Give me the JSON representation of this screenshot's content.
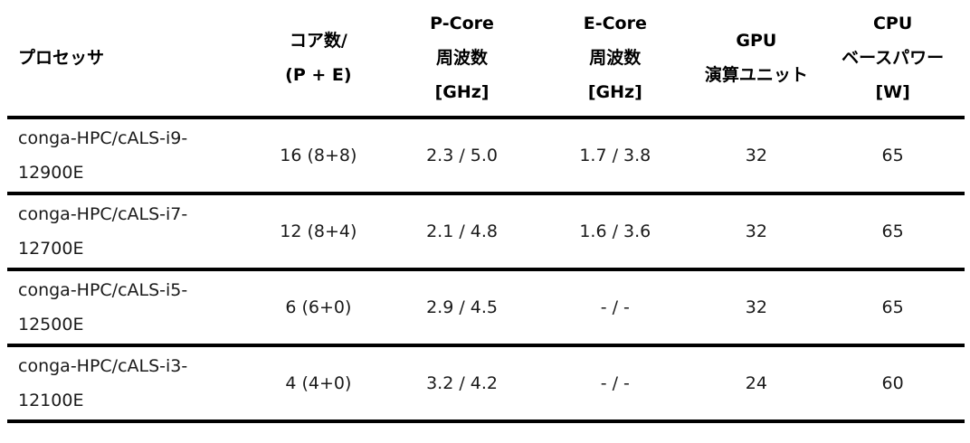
{
  "colors": {
    "background": "#ffffff",
    "text": "#1a1a1a",
    "header_text": "#000000",
    "rule": "#000000"
  },
  "table": {
    "columns": [
      {
        "id": "processor",
        "label_lines": [
          "プロセッサ"
        ]
      },
      {
        "id": "cores",
        "label_lines": [
          "コア数/",
          "(P + E)"
        ]
      },
      {
        "id": "pcore_freq",
        "label_lines": [
          "P-Core",
          "周波数",
          "[GHz]"
        ]
      },
      {
        "id": "ecore_freq",
        "label_lines": [
          "E-Core",
          "周波数",
          "[GHz]"
        ]
      },
      {
        "id": "gpu_units",
        "label_lines": [
          "GPU",
          "演算ユニット"
        ]
      },
      {
        "id": "cpu_base_power",
        "label_lines": [
          "CPU",
          "ベースパワー",
          "[W]"
        ]
      }
    ],
    "rows": [
      {
        "processor_lines": [
          "conga-HPC/cALS-i9-",
          "12900E"
        ],
        "cores": "16 (8+8)",
        "pcore_freq": "2.3 / 5.0",
        "ecore_freq": "1.7 / 3.8",
        "gpu_units": "32",
        "cpu_base_power": "65"
      },
      {
        "processor_lines": [
          "conga-HPC/cALS-i7-",
          "12700E"
        ],
        "cores": "12 (8+4)",
        "pcore_freq": "2.1 / 4.8",
        "ecore_freq": "1.6 / 3.6",
        "gpu_units": "32",
        "cpu_base_power": "65"
      },
      {
        "processor_lines": [
          "conga-HPC/cALS-i5-",
          "12500E"
        ],
        "cores": "6 (6+0)",
        "pcore_freq": "2.9 / 4.5",
        "ecore_freq": "- / -",
        "gpu_units": "32",
        "cpu_base_power": "65"
      },
      {
        "processor_lines": [
          "conga-HPC/cALS-i3-",
          "12100E"
        ],
        "cores": "4 (4+0)",
        "pcore_freq": "3.2 / 4.2",
        "ecore_freq": "- / -",
        "gpu_units": "24",
        "cpu_base_power": "60"
      }
    ]
  }
}
